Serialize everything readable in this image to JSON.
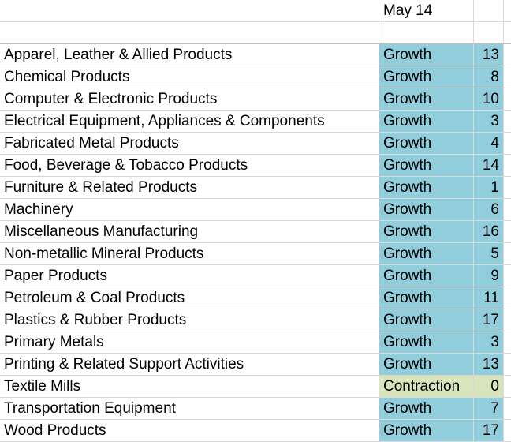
{
  "header": {
    "month": "May 14"
  },
  "rows": [
    {
      "industry": "Apparel, Leather & Allied Products",
      "status": "Growth",
      "rank": "13"
    },
    {
      "industry": "Chemical Products",
      "status": "Growth",
      "rank": "8"
    },
    {
      "industry": "Computer & Electronic Products",
      "status": "Growth",
      "rank": "10"
    },
    {
      "industry": "Electrical Equipment, Appliances & Components",
      "status": "Growth",
      "rank": "3"
    },
    {
      "industry": "Fabricated Metal Products",
      "status": "Growth",
      "rank": "4"
    },
    {
      "industry": "Food, Beverage & Tobacco Products",
      "status": "Growth",
      "rank": "14"
    },
    {
      "industry": "Furniture & Related Products",
      "status": "Growth",
      "rank": "1"
    },
    {
      "industry": "Machinery",
      "status": "Growth",
      "rank": "6"
    },
    {
      "industry": "Miscellaneous Manufacturing",
      "status": "Growth",
      "rank": "16"
    },
    {
      "industry": "Non-metallic Mineral Products",
      "status": "Growth",
      "rank": "5"
    },
    {
      "industry": "Paper Products",
      "status": "Growth",
      "rank": "9"
    },
    {
      "industry": "Petroleum & Coal Products",
      "status": "Growth",
      "rank": "11"
    },
    {
      "industry": "Plastics & Rubber Products",
      "status": "Growth",
      "rank": "17"
    },
    {
      "industry": "Primary Metals",
      "status": "Growth",
      "rank": "3"
    },
    {
      "industry": "Printing & Related Support Activities",
      "status": "Growth",
      "rank": "13"
    },
    {
      "industry": "Textile Mills",
      "status": "Contraction",
      "rank": "0"
    },
    {
      "industry": "Transportation Equipment",
      "status": "Growth",
      "rank": "7"
    },
    {
      "industry": "Wood Products",
      "status": "Growth",
      "rank": "17"
    }
  ],
  "colors": {
    "growth": "#92cddc",
    "contraction": "#d7e4bc"
  }
}
